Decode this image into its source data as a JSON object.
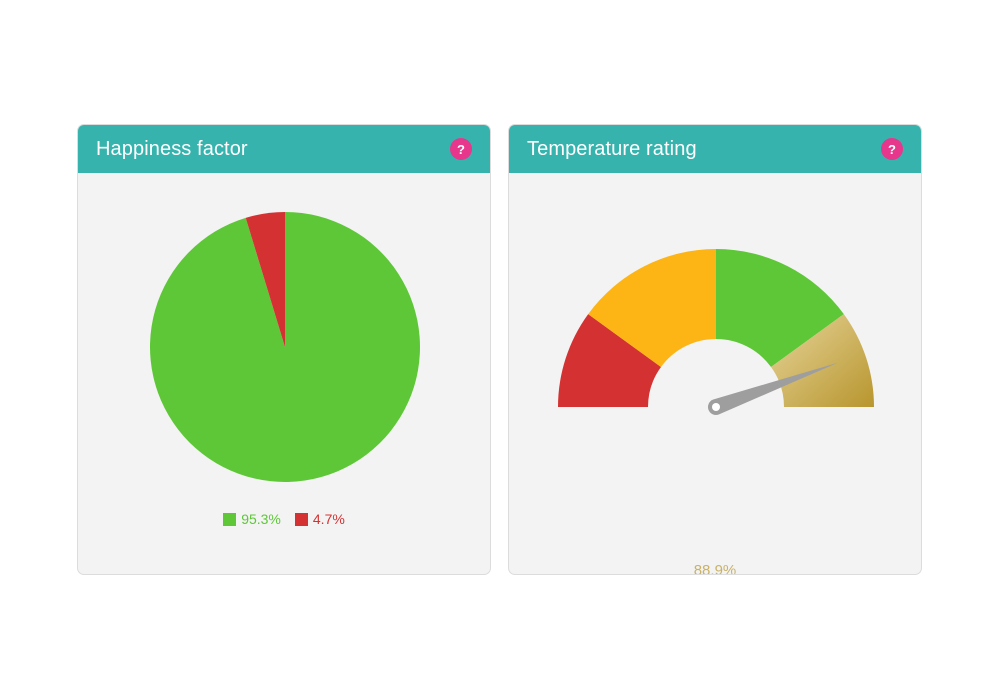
{
  "cards": {
    "happiness": {
      "title": "Happiness factor",
      "help_symbol": "?"
    },
    "temperature": {
      "title": "Temperature rating",
      "help_symbol": "?"
    }
  },
  "colors": {
    "header": "#37b3ae",
    "help": "#e6378c",
    "green": "#5ec738",
    "red": "#d43232",
    "orange": "#fdb515",
    "gold": "#c9b268",
    "needle": "#9e9e9e",
    "card_bg": "#f3f3f3"
  },
  "chart_data": [
    {
      "type": "pie",
      "title": "Happiness factor",
      "slices": [
        {
          "label": "95.3%",
          "value": 95.3,
          "color": "#5ec738"
        },
        {
          "label": "4.7%",
          "value": 4.7,
          "color": "#d43232"
        }
      ],
      "legend_placement": "bottom"
    },
    {
      "type": "gauge",
      "title": "Temperature rating",
      "value": 88.9,
      "value_label": "88.9%",
      "range": [
        0,
        100
      ],
      "bands": [
        {
          "from": 0,
          "to": 20,
          "color": "#d43232"
        },
        {
          "from": 20,
          "to": 50,
          "color": "#fdb515"
        },
        {
          "from": 50,
          "to": 80,
          "color": "#5ec738"
        },
        {
          "from": 80,
          "to": 100,
          "color": "#c9b268"
        }
      ]
    }
  ]
}
